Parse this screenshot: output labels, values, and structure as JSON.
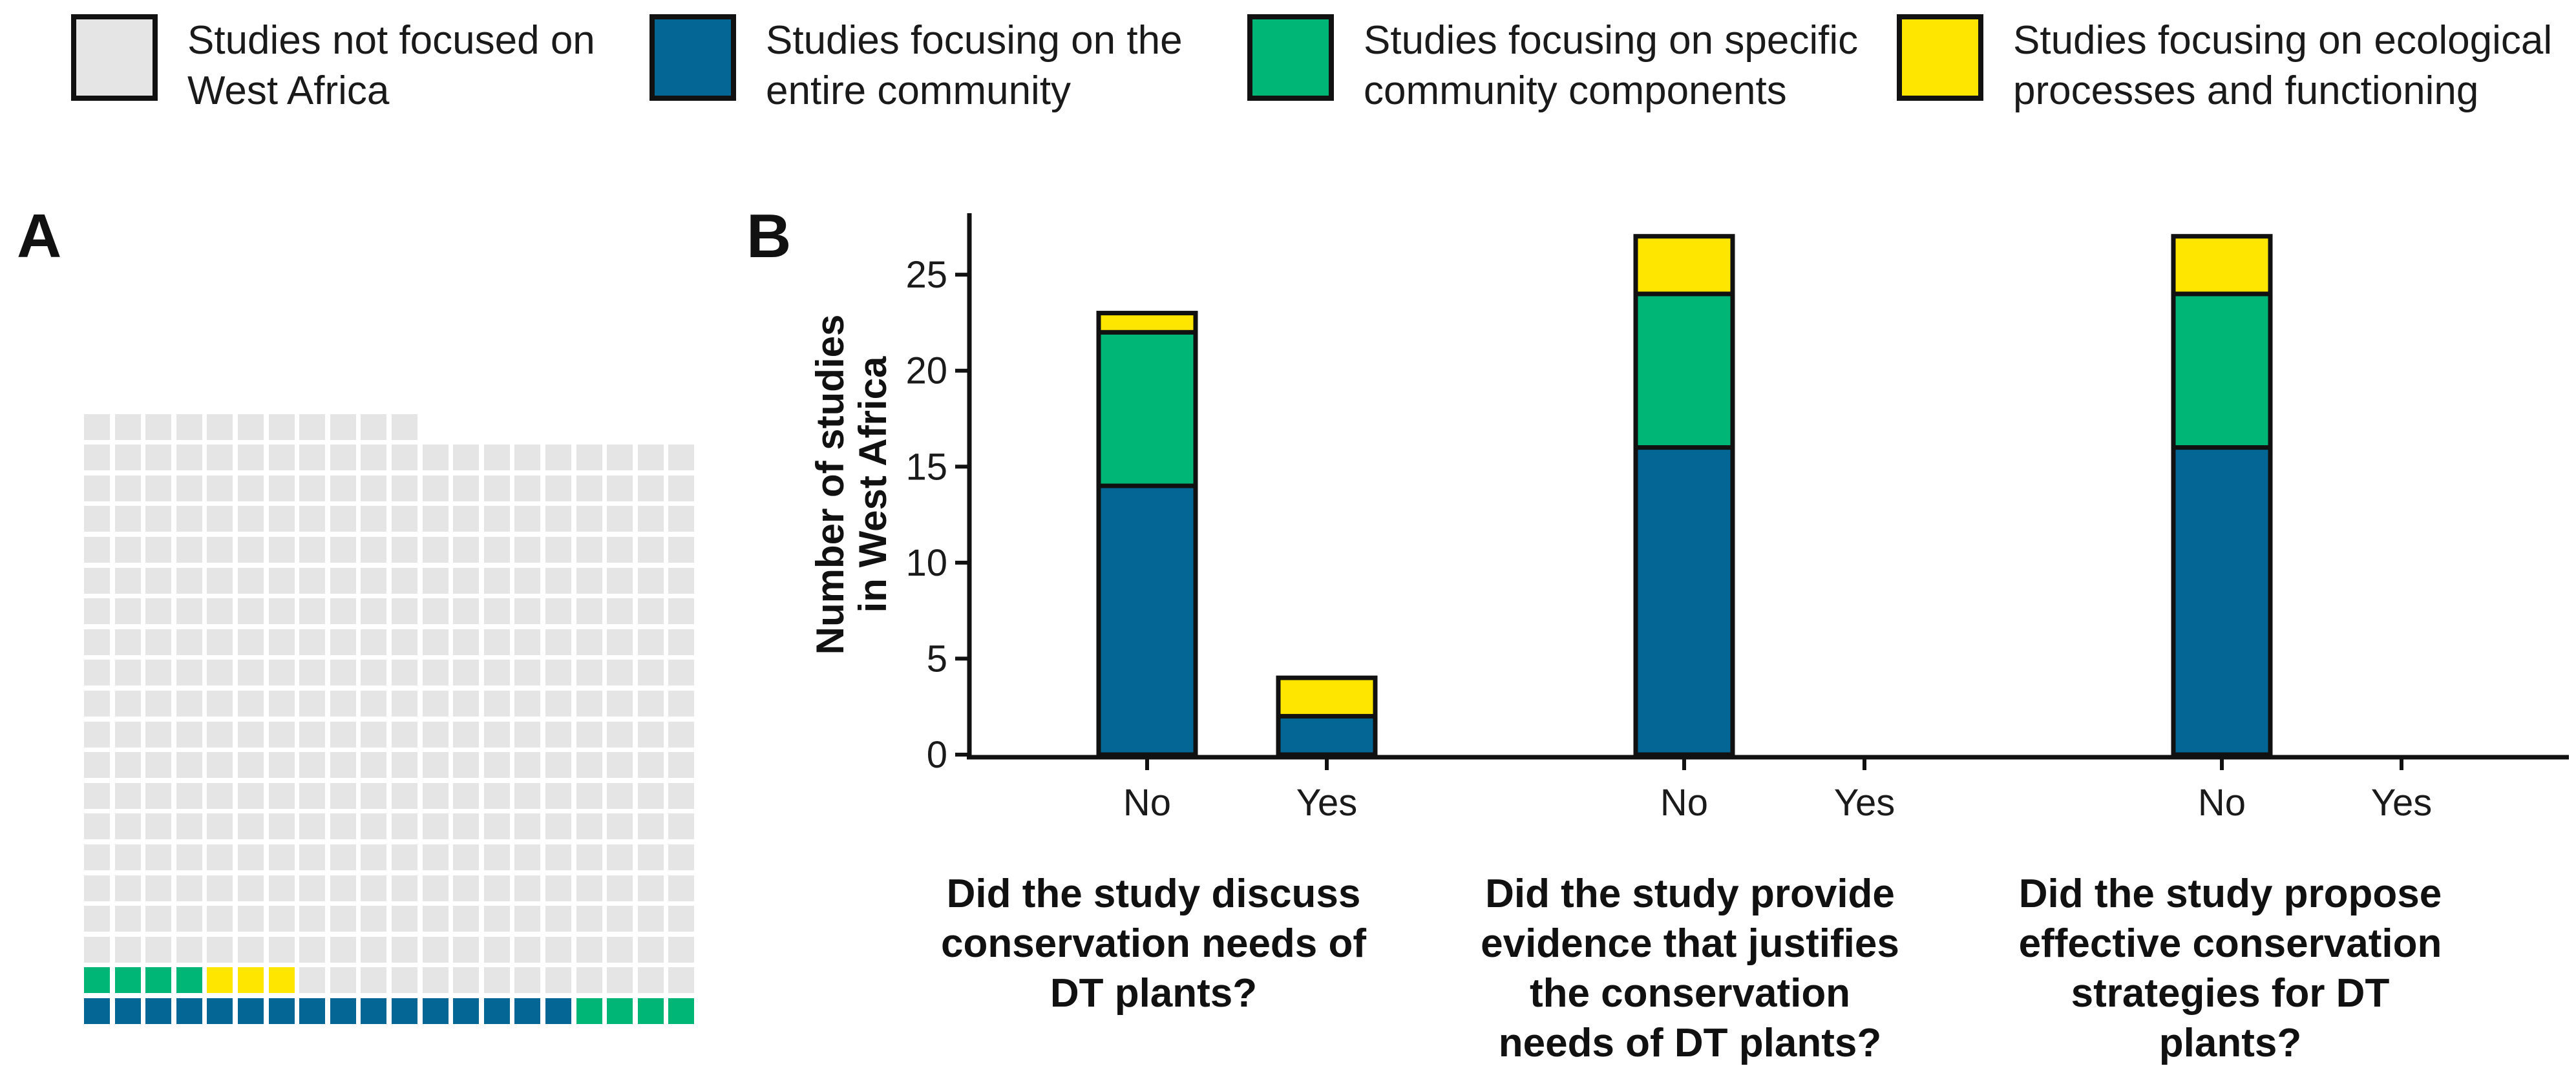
{
  "legend": {
    "items": [
      {
        "line1": "Studies not focused on",
        "line2": "West Africa",
        "color": "#e5e5e5"
      },
      {
        "line1": "Studies focusing on the",
        "line2": "entire community",
        "color": "#046694"
      },
      {
        "line1": "Studies focusing on specific",
        "line2": "community components",
        "color": "#00b677"
      },
      {
        "line1": "Studies focusing on ecological",
        "line2": "processes and functioning",
        "color": "#ffe600"
      }
    ]
  },
  "panels": {
    "a": "A",
    "b": "B"
  },
  "chart_data": [
    {
      "type": "waffle",
      "panel": "A",
      "columns": 20,
      "total_cells": 391,
      "fill_order": "left-to-right, bottom-to-top",
      "counts": [
        {
          "name": "Studies focusing on the entire community",
          "value": 16,
          "color": "#046694"
        },
        {
          "name": "Studies focusing on specific community components",
          "value": 8,
          "color": "#00b677"
        },
        {
          "name": "Studies focusing on ecological processes and functioning",
          "value": 3,
          "color": "#ffe600"
        },
        {
          "name": "Studies not focused on West Africa",
          "value": 364,
          "color": "#e5e5e5"
        }
      ]
    },
    {
      "type": "bar",
      "stacked": true,
      "panel": "B",
      "ylabel": [
        "Number of studies",
        "in West Africa"
      ],
      "ylim": [
        0,
        28
      ],
      "yticks": [
        0,
        5,
        10,
        15,
        20,
        25
      ],
      "groups": [
        {
          "question": [
            "Did the study discuss",
            "conservation needs of",
            "DT plants?"
          ],
          "categories": [
            "No",
            "Yes"
          ]
        },
        {
          "question": [
            "Did the study provide",
            "evidence that justifies",
            "the conservation",
            "needs of DT plants?"
          ],
          "categories": [
            "No",
            "Yes"
          ]
        },
        {
          "question": [
            "Did the study propose",
            "effective conservation",
            "strategies for DT",
            "plants?"
          ],
          "categories": [
            "No",
            "Yes"
          ]
        }
      ],
      "categories": [
        "No",
        "Yes",
        "No",
        "Yes",
        "No",
        "Yes"
      ],
      "series": [
        {
          "name": "Studies focusing on the entire community",
          "color": "#046694",
          "values": [
            14,
            2,
            16,
            0,
            16,
            0
          ]
        },
        {
          "name": "Studies focusing on specific community components",
          "color": "#00b677",
          "values": [
            8,
            0,
            8,
            0,
            8,
            0
          ]
        },
        {
          "name": "Studies focusing on ecological processes and functioning",
          "color": "#ffe600",
          "values": [
            1,
            2,
            3,
            0,
            3,
            0
          ]
        }
      ]
    }
  ]
}
